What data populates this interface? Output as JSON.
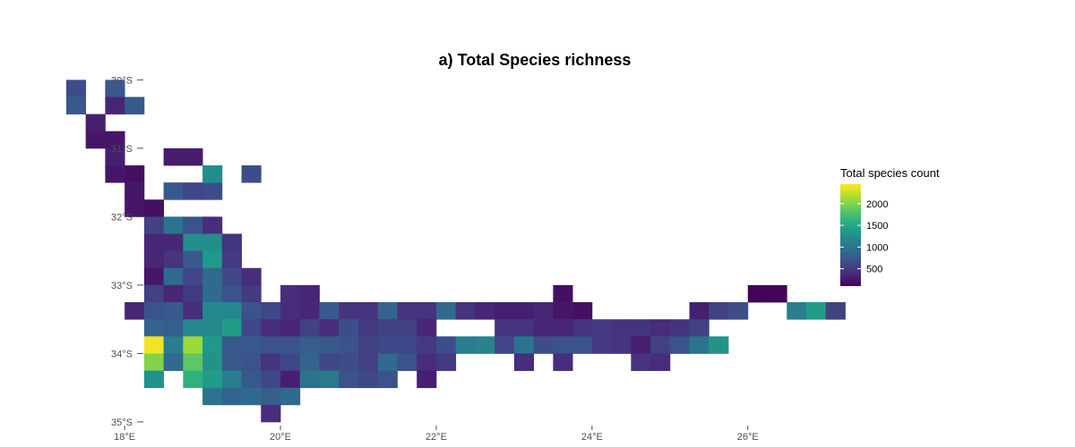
{
  "title": "a) Total Species richness",
  "legend": {
    "title": "Total species count",
    "ticks": [
      {
        "value": 500,
        "label": "500"
      },
      {
        "value": 1000,
        "label": "1000"
      },
      {
        "value": 1500,
        "label": "1500"
      },
      {
        "value": 2000,
        "label": "2000"
      }
    ],
    "range": [
      100,
      2450
    ],
    "colormap": [
      "#440154",
      "#482878",
      "#3e4a89",
      "#31688e",
      "#26828e",
      "#1f9e89",
      "#35b779",
      "#6ece58",
      "#b5de2b",
      "#fde725"
    ]
  },
  "axes": {
    "lon_ticks": [
      {
        "value": 18,
        "label": "18°E"
      },
      {
        "value": 20,
        "label": "20°E"
      },
      {
        "value": 22,
        "label": "22°E"
      },
      {
        "value": 24,
        "label": "24°E"
      },
      {
        "value": 26,
        "label": "26°E"
      }
    ],
    "lat_ticks": [
      {
        "value": -30,
        "label": "30°S"
      },
      {
        "value": -31,
        "label": "31°S"
      },
      {
        "value": -32,
        "label": "32°S"
      },
      {
        "value": -33,
        "label": "33°S"
      },
      {
        "value": -34,
        "label": "34°S"
      },
      {
        "value": -35,
        "label": "35°S"
      }
    ],
    "lon_range": [
      16.4,
      30.2
    ],
    "lat_range": [
      -35.04,
      -29.46
    ]
  },
  "chart_data": {
    "type": "heatmap",
    "title": "a) Total Species richness",
    "value_label": "Total species count",
    "cell_size_deg": 0.25,
    "cells_lon_lat_value": [
      [
        17.375,
        -30.125,
        650
      ],
      [
        17.375,
        -30.375,
        750
      ],
      [
        17.875,
        -30.125,
        750
      ],
      [
        17.875,
        -30.375,
        350
      ],
      [
        18.125,
        -30.375,
        750
      ],
      [
        17.625,
        -30.625,
        300
      ],
      [
        17.625,
        -30.875,
        250
      ],
      [
        17.875,
        -30.875,
        250
      ],
      [
        17.875,
        -31.125,
        300
      ],
      [
        17.875,
        -31.375,
        250
      ],
      [
        18.125,
        -31.375,
        200
      ],
      [
        18.125,
        -31.625,
        250
      ],
      [
        18.125,
        -31.875,
        250
      ],
      [
        18.375,
        -31.875,
        200
      ],
      [
        18.625,
        -31.625,
        750
      ],
      [
        18.875,
        -31.625,
        600
      ],
      [
        19.125,
        -31.625,
        650
      ],
      [
        18.625,
        -31.125,
        280
      ],
      [
        18.875,
        -31.125,
        280
      ],
      [
        19.125,
        -31.375,
        1250
      ],
      [
        19.625,
        -31.375,
        650
      ],
      [
        18.375,
        -32.125,
        550
      ],
      [
        18.625,
        -32.125,
        1000
      ],
      [
        18.875,
        -32.125,
        700
      ],
      [
        19.125,
        -32.125,
        400
      ],
      [
        18.375,
        -32.375,
        350
      ],
      [
        18.625,
        -32.375,
        350
      ],
      [
        18.875,
        -32.375,
        1250
      ],
      [
        19.125,
        -32.375,
        1250
      ],
      [
        19.375,
        -32.375,
        450
      ],
      [
        18.375,
        -32.625,
        350
      ],
      [
        18.625,
        -32.625,
        450
      ],
      [
        18.875,
        -32.625,
        750
      ],
      [
        19.125,
        -32.625,
        1350
      ],
      [
        19.375,
        -32.625,
        500
      ],
      [
        18.375,
        -32.875,
        250
      ],
      [
        18.625,
        -32.875,
        900
      ],
      [
        18.875,
        -32.875,
        600
      ],
      [
        19.125,
        -32.875,
        900
      ],
      [
        19.375,
        -32.875,
        600
      ],
      [
        19.625,
        -32.875,
        400
      ],
      [
        18.375,
        -33.125,
        550
      ],
      [
        18.625,
        -33.125,
        350
      ],
      [
        18.875,
        -33.125,
        500
      ],
      [
        19.125,
        -33.125,
        900
      ],
      [
        19.375,
        -33.125,
        700
      ],
      [
        19.625,
        -33.125,
        500
      ],
      [
        20.125,
        -33.125,
        400
      ],
      [
        20.375,
        -33.125,
        350
      ],
      [
        23.625,
        -33.125,
        200
      ],
      [
        26.125,
        -33.125,
        120
      ],
      [
        26.375,
        -33.125,
        120
      ],
      [
        18.125,
        -33.375,
        350
      ],
      [
        18.375,
        -33.375,
        700
      ],
      [
        18.625,
        -33.375,
        750
      ],
      [
        18.875,
        -33.375,
        400
      ],
      [
        19.125,
        -33.375,
        1200
      ],
      [
        19.375,
        -33.375,
        1200
      ],
      [
        19.625,
        -33.375,
        700
      ],
      [
        19.875,
        -33.375,
        600
      ],
      [
        20.125,
        -33.375,
        400
      ],
      [
        20.375,
        -33.375,
        350
      ],
      [
        20.625,
        -33.375,
        750
      ],
      [
        20.875,
        -33.375,
        450
      ],
      [
        21.125,
        -33.375,
        450
      ],
      [
        21.375,
        -33.375,
        850
      ],
      [
        21.625,
        -33.375,
        450
      ],
      [
        21.875,
        -33.375,
        450
      ],
      [
        22.125,
        -33.375,
        900
      ],
      [
        22.375,
        -33.375,
        450
      ],
      [
        22.625,
        -33.375,
        350
      ],
      [
        22.875,
        -33.375,
        300
      ],
      [
        23.125,
        -33.375,
        300
      ],
      [
        23.375,
        -33.375,
        350
      ],
      [
        23.625,
        -33.375,
        250
      ],
      [
        23.875,
        -33.375,
        200
      ],
      [
        25.375,
        -33.375,
        300
      ],
      [
        25.625,
        -33.375,
        550
      ],
      [
        25.875,
        -33.375,
        650
      ],
      [
        26.625,
        -33.375,
        1100
      ],
      [
        26.875,
        -33.375,
        1400
      ],
      [
        27.125,
        -33.375,
        550
      ],
      [
        18.375,
        -33.625,
        850
      ],
      [
        18.625,
        -33.625,
        800
      ],
      [
        18.875,
        -33.625,
        1200
      ],
      [
        19.125,
        -33.625,
        1200
      ],
      [
        19.375,
        -33.625,
        1400
      ],
      [
        19.625,
        -33.625,
        600
      ],
      [
        19.875,
        -33.625,
        400
      ],
      [
        20.125,
        -33.625,
        350
      ],
      [
        20.375,
        -33.625,
        550
      ],
      [
        20.625,
        -33.625,
        400
      ],
      [
        20.875,
        -33.625,
        650
      ],
      [
        21.125,
        -33.625,
        500
      ],
      [
        21.375,
        -33.625,
        550
      ],
      [
        21.625,
        -33.625,
        550
      ],
      [
        21.875,
        -33.625,
        350
      ],
      [
        22.875,
        -33.625,
        450
      ],
      [
        23.125,
        -33.625,
        450
      ],
      [
        23.375,
        -33.625,
        350
      ],
      [
        23.625,
        -33.625,
        350
      ],
      [
        23.875,
        -33.625,
        450
      ],
      [
        24.125,
        -33.625,
        500
      ],
      [
        24.375,
        -33.625,
        450
      ],
      [
        24.625,
        -33.625,
        450
      ],
      [
        24.875,
        -33.625,
        400
      ],
      [
        25.125,
        -33.625,
        450
      ],
      [
        25.375,
        -33.625,
        550
      ],
      [
        18.375,
        -33.875,
        2400
      ],
      [
        18.625,
        -33.875,
        1100
      ],
      [
        18.875,
        -33.875,
        2100
      ],
      [
        19.125,
        -33.875,
        1350
      ],
      [
        19.375,
        -33.875,
        750
      ],
      [
        19.625,
        -33.875,
        750
      ],
      [
        19.875,
        -33.875,
        700
      ],
      [
        20.125,
        -33.875,
        700
      ],
      [
        20.375,
        -33.875,
        800
      ],
      [
        20.625,
        -33.875,
        750
      ],
      [
        20.875,
        -33.875,
        700
      ],
      [
        21.125,
        -33.875,
        550
      ],
      [
        21.375,
        -33.875,
        600
      ],
      [
        21.625,
        -33.875,
        600
      ],
      [
        21.875,
        -33.875,
        500
      ],
      [
        22.125,
        -33.875,
        650
      ],
      [
        22.375,
        -33.875,
        1100
      ],
      [
        22.625,
        -33.875,
        1150
      ],
      [
        22.875,
        -33.875,
        600
      ],
      [
        23.125,
        -33.875,
        1000
      ],
      [
        23.375,
        -33.875,
        650
      ],
      [
        23.625,
        -33.875,
        700
      ],
      [
        23.875,
        -33.875,
        700
      ],
      [
        24.125,
        -33.875,
        500
      ],
      [
        24.375,
        -33.875,
        450
      ],
      [
        24.625,
        -33.875,
        300
      ],
      [
        24.875,
        -33.875,
        550
      ],
      [
        25.125,
        -33.875,
        700
      ],
      [
        25.375,
        -33.875,
        1000
      ],
      [
        25.625,
        -33.875,
        1300
      ],
      [
        18.375,
        -34.125,
        2000
      ],
      [
        18.625,
        -34.125,
        900
      ],
      [
        18.875,
        -34.125,
        1850
      ],
      [
        19.125,
        -34.125,
        1300
      ],
      [
        19.375,
        -34.125,
        750
      ],
      [
        19.625,
        -34.125,
        700
      ],
      [
        19.875,
        -34.125,
        450
      ],
      [
        20.125,
        -34.125,
        600
      ],
      [
        20.375,
        -34.125,
        850
      ],
      [
        20.625,
        -34.125,
        600
      ],
      [
        20.875,
        -34.125,
        650
      ],
      [
        21.125,
        -34.125,
        550
      ],
      [
        21.375,
        -34.125,
        900
      ],
      [
        21.625,
        -34.125,
        700
      ],
      [
        21.875,
        -34.125,
        400
      ],
      [
        22.125,
        -34.125,
        500
      ],
      [
        23.125,
        -34.125,
        400
      ],
      [
        23.625,
        -34.125,
        400
      ],
      [
        24.625,
        -34.125,
        450
      ],
      [
        24.875,
        -34.125,
        400
      ],
      [
        18.375,
        -34.375,
        1300
      ],
      [
        18.875,
        -34.375,
        1600
      ],
      [
        19.125,
        -34.375,
        1400
      ],
      [
        19.375,
        -34.375,
        1100
      ],
      [
        19.625,
        -34.375,
        750
      ],
      [
        19.875,
        -34.375,
        600
      ],
      [
        20.125,
        -34.375,
        300
      ],
      [
        20.375,
        -34.375,
        1000
      ],
      [
        20.625,
        -34.375,
        1050
      ],
      [
        20.875,
        -34.375,
        700
      ],
      [
        21.125,
        -34.375,
        600
      ],
      [
        21.375,
        -34.375,
        700
      ],
      [
        21.875,
        -34.375,
        300
      ],
      [
        19.125,
        -34.625,
        1000
      ],
      [
        19.375,
        -34.625,
        850
      ],
      [
        19.625,
        -34.625,
        900
      ],
      [
        19.875,
        -34.625,
        800
      ],
      [
        20.125,
        -34.625,
        900
      ],
      [
        19.875,
        -34.875,
        400
      ]
    ],
    "xlim": [
      16.4,
      30.2
    ],
    "ylim": [
      -35.04,
      -29.46
    ],
    "value_range": [
      100,
      2450
    ]
  }
}
